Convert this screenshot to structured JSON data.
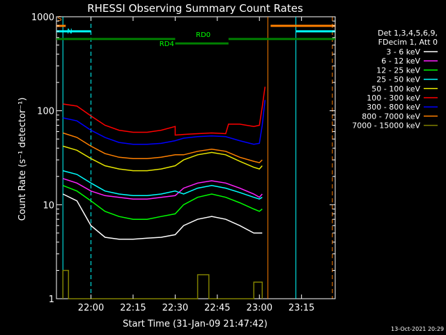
{
  "chart_data": {
    "type": "line",
    "title": "RHESSI Observing Summary Count Rates",
    "xlabel": "Start Time (31-Jan-09 21:47:42)",
    "ylabel": "Count Rate (s⁻¹ detector⁻¹)",
    "x_scale": "time",
    "y_scale": "log",
    "xlim": [
      "21:47:42",
      "23:27:00"
    ],
    "ylim": [
      1,
      1000
    ],
    "x_ticks": [
      "22:00",
      "22:15",
      "22:30",
      "22:45",
      "23:00",
      "23:15"
    ],
    "y_ticks": [
      "1",
      "10",
      "100",
      "1000"
    ],
    "grid": false,
    "legend_position": "right",
    "legend_header": [
      "Det 1,3,4,5,6,9,",
      "FDecim 1, Att 0"
    ],
    "timestamp": "13-Oct-2021 20:29",
    "series": [
      {
        "name": "3 - 6 keV",
        "color": "#ffffff",
        "x": [
          "21:50",
          "21:55",
          "22:00",
          "22:05",
          "22:10",
          "22:15",
          "22:20",
          "22:25",
          "22:30",
          "22:33",
          "22:38",
          "22:43",
          "22:48",
          "22:53",
          "22:58",
          "23:00",
          "23:01"
        ],
        "y": [
          13,
          11,
          6,
          4.5,
          4.3,
          4.3,
          4.4,
          4.5,
          4.8,
          6,
          7,
          7.5,
          7,
          6,
          5,
          5,
          5
        ]
      },
      {
        "name": "6 - 12 keV",
        "color": "#ff22ff",
        "x": [
          "21:50",
          "21:55",
          "22:00",
          "22:05",
          "22:10",
          "22:15",
          "22:20",
          "22:25",
          "22:30",
          "22:33",
          "22:38",
          "22:43",
          "22:48",
          "22:53",
          "22:58",
          "23:00",
          "23:01"
        ],
        "y": [
          19,
          17,
          14,
          12.5,
          12,
          11.5,
          11.5,
          12,
          12.5,
          15,
          17,
          18,
          17,
          15,
          13,
          12,
          13
        ]
      },
      {
        "name": "12 - 25 keV",
        "color": "#00ff00",
        "x": [
          "21:50",
          "21:55",
          "22:00",
          "22:05",
          "22:10",
          "22:15",
          "22:20",
          "22:25",
          "22:30",
          "22:33",
          "22:38",
          "22:43",
          "22:48",
          "22:53",
          "22:58",
          "23:00",
          "23:01"
        ],
        "y": [
          16,
          14,
          11,
          8.5,
          7.5,
          7,
          7,
          7.5,
          8,
          10,
          12,
          13,
          12,
          10.5,
          9,
          8.5,
          9
        ]
      },
      {
        "name": "25 - 50 keV",
        "color": "#00ffff",
        "x": [
          "21:50",
          "21:55",
          "22:00",
          "22:05",
          "22:10",
          "22:15",
          "22:20",
          "22:25",
          "22:30",
          "22:33",
          "22:38",
          "22:43",
          "22:48",
          "22:53",
          "22:58",
          "23:00",
          "23:01"
        ],
        "y": [
          23,
          21,
          17,
          14,
          13,
          12.5,
          12.5,
          13,
          14,
          13,
          15,
          16,
          15,
          13.5,
          12,
          11.5,
          12
        ]
      },
      {
        "name": "50 - 100 keV",
        "color": "#e6e600",
        "x": [
          "21:50",
          "21:55",
          "22:00",
          "22:05",
          "22:10",
          "22:15",
          "22:20",
          "22:25",
          "22:30",
          "22:33",
          "22:38",
          "22:43",
          "22:48",
          "22:53",
          "22:58",
          "23:00",
          "23:01"
        ],
        "y": [
          42,
          38,
          31,
          26,
          24,
          23,
          23,
          24,
          26,
          30,
          34,
          36,
          34,
          29,
          25,
          24,
          26
        ]
      },
      {
        "name": "100 - 300 keV",
        "color": "#ff0000",
        "x": [
          "21:50",
          "21:55",
          "22:00",
          "22:05",
          "22:10",
          "22:15",
          "22:20",
          "22:25",
          "22:30",
          "22:30",
          "22:33",
          "22:38",
          "22:43",
          "22:48",
          "22:49",
          "22:53",
          "22:58",
          "23:00",
          "23:01",
          "23:02"
        ],
        "y": [
          118,
          112,
          88,
          70,
          62,
          59,
          59,
          62,
          68,
          55,
          56,
          57,
          58,
          57,
          72,
          72,
          68,
          70,
          110,
          180
        ]
      },
      {
        "name": "300 - 800 keV",
        "color": "#0000ff",
        "x": [
          "21:50",
          "21:55",
          "22:00",
          "22:05",
          "22:10",
          "22:15",
          "22:20",
          "22:25",
          "22:30",
          "22:33",
          "22:38",
          "22:43",
          "22:48",
          "22:53",
          "22:58",
          "23:00",
          "23:01",
          "23:02"
        ],
        "y": [
          84,
          78,
          62,
          52,
          46,
          44,
          44,
          45,
          48,
          51,
          53,
          54,
          53,
          48,
          44,
          45,
          70,
          130
        ]
      },
      {
        "name": "800 - 7000 keV",
        "color": "#ff8000",
        "x": [
          "21:50",
          "21:55",
          "22:00",
          "22:05",
          "22:10",
          "22:15",
          "22:20",
          "22:25",
          "22:30",
          "22:33",
          "22:38",
          "22:43",
          "22:48",
          "22:53",
          "22:58",
          "23:00",
          "23:01"
        ],
        "y": [
          58,
          52,
          42,
          35,
          32,
          31,
          31,
          32,
          34,
          34,
          37,
          39,
          37,
          32,
          29,
          28,
          30
        ]
      },
      {
        "name": "7000 - 15000 keV",
        "color": "#808000",
        "x": [
          "21:50",
          "21:50",
          "21:52",
          "21:52",
          "22:38",
          "22:38",
          "22:42",
          "22:42",
          "22:58",
          "22:58",
          "23:01",
          "23:01"
        ],
        "y": [
          1,
          2,
          2,
          1,
          1,
          1.8,
          1.8,
          1,
          1,
          1.5,
          1.5,
          1
        ]
      }
    ],
    "annotations": [
      {
        "text": "S",
        "color": "#ff8000"
      },
      {
        "text": "N",
        "color": "#00ffff"
      },
      {
        "text": "RD0",
        "color": "#00ff00"
      },
      {
        "text": "RD4",
        "color": "#00ff00"
      }
    ],
    "segments": [
      {
        "name": "saa",
        "color": "#ff8000",
        "y_value": 800,
        "x": [
          "21:47:42",
          "21:51"
        ]
      },
      {
        "name": "saa",
        "color": "#ff8000",
        "y_value": 800,
        "x": [
          "23:04",
          "23:27"
        ]
      },
      {
        "name": "night",
        "color": "#00ffff",
        "y_value": 700,
        "x": [
          "21:47:42",
          "22:00"
        ]
      },
      {
        "name": "night",
        "color": "#00ffff",
        "y_value": 700,
        "x": [
          "23:13",
          "23:27"
        ]
      },
      {
        "name": "rd0",
        "color": "#008000",
        "y_value": 580,
        "x": [
          "21:47:42",
          "22:30"
        ]
      },
      {
        "name": "rd0",
        "color": "#008000",
        "y_value": 580,
        "x": [
          "22:49",
          "23:27"
        ]
      },
      {
        "name": "rd4",
        "color": "#008000",
        "y_value": 520,
        "x": [
          "22:30",
          "22:49"
        ]
      }
    ],
    "vertical_markers": [
      {
        "x": "21:50",
        "color": "#00ffff",
        "style": "solid"
      },
      {
        "x": "22:00",
        "color": "#00ffff",
        "style": "dashed"
      },
      {
        "x": "23:03",
        "color": "#ff8000",
        "style": "solid"
      },
      {
        "x": "23:13",
        "color": "#00ffff",
        "style": "solid"
      },
      {
        "x": "23:26",
        "color": "#ff8000",
        "style": "dashed"
      }
    ]
  }
}
